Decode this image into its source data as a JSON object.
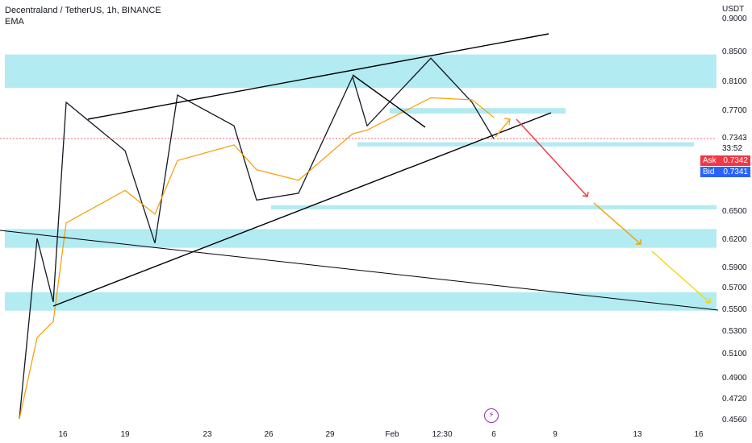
{
  "header": {
    "title": "Decentraland / TetherUS, 1h, BINANCE",
    "indicator": "EMA"
  },
  "currency": "USDT",
  "current": {
    "price": "0.7343",
    "countdown": "33:52"
  },
  "ask": {
    "label": "Ask",
    "value": "0.7342"
  },
  "bid": {
    "label": "Bid",
    "value": "0.7341"
  },
  "chart_data": {
    "type": "candlestick",
    "symbol": "Decentraland / TetherUS",
    "timeframe": "1h",
    "exchange": "BINANCE",
    "indicators": [
      "EMA"
    ],
    "y_axis": {
      "unit": "USDT",
      "ticks": [
        "0.9000",
        "0.8500",
        "0.8100",
        "0.7700",
        "0.7343",
        "0.6500",
        "0.6200",
        "0.5900",
        "0.5700",
        "0.5500",
        "0.5300",
        "0.5100",
        "0.4900",
        "0.4720",
        "0.4560"
      ]
    },
    "x_axis": {
      "ticks": [
        "16",
        "19",
        "23",
        "26",
        "29",
        "Feb",
        "12:30",
        "6",
        "9",
        "13",
        "16"
      ]
    },
    "price_path_key_points": [
      {
        "x": "start",
        "y": 0.456
      },
      {
        "x": "~15",
        "y": 0.62
      },
      {
        "x": "16",
        "y": 0.556
      },
      {
        "x": "~17",
        "y": 0.78
      },
      {
        "x": "19",
        "y": 0.72
      },
      {
        "x": "~21",
        "y": 0.615
      },
      {
        "x": "~22",
        "y": 0.79
      },
      {
        "x": "~25",
        "y": 0.75
      },
      {
        "x": "~26",
        "y": 0.662
      },
      {
        "x": "~28",
        "y": 0.67
      },
      {
        "x": "~30",
        "y": 0.815
      },
      {
        "x": "31",
        "y": 0.75
      },
      {
        "x": "Feb",
        "y": 0.84
      },
      {
        "x": "~4",
        "y": 0.78
      },
      {
        "x": "~5",
        "y": 0.734
      }
    ],
    "zones": [
      {
        "from": 0.8,
        "to": 0.845
      },
      {
        "from": 0.765,
        "to": 0.772
      },
      {
        "from": 0.725,
        "to": 0.73
      },
      {
        "from": 0.651,
        "to": 0.656
      },
      {
        "from": 0.61,
        "to": 0.63
      },
      {
        "from": 0.548,
        "to": 0.565
      }
    ],
    "annotations": [
      "rising wedge: upper trendline",
      "rising wedge: lower trendline",
      "short descending trendline",
      "long descending trendline",
      "projected up arrow",
      "projected red down arrow",
      "projected orange down arrow",
      "projected yellow down arrow"
    ]
  }
}
